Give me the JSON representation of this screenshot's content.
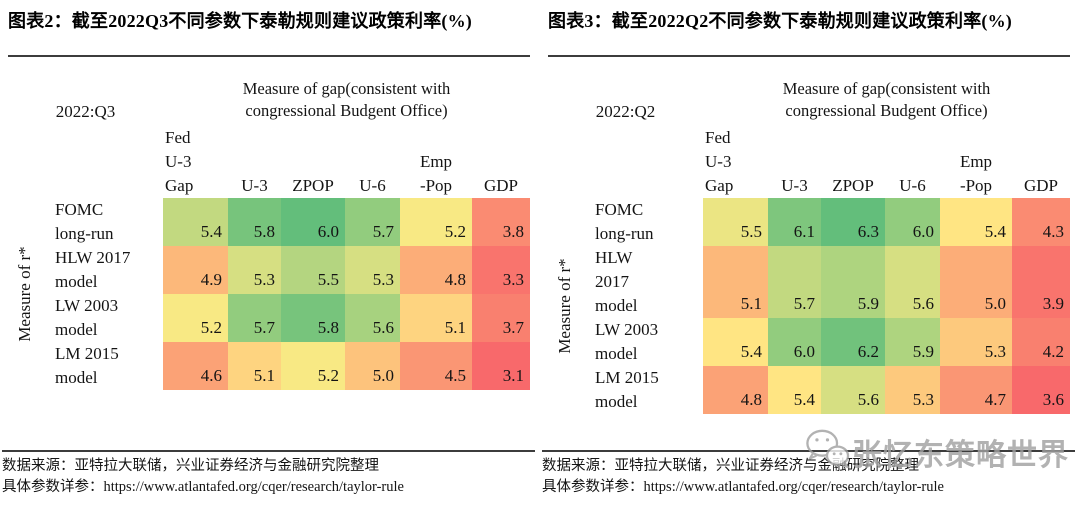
{
  "heatmap_scale": {
    "low": "#F8696B",
    "mid": "#FFEB84",
    "high": "#63BE7B"
  },
  "watermark": {
    "icon": "wechat-icon",
    "text": "张忆东策略世界"
  },
  "chart_data": [
    {
      "type": "heatmap",
      "title": "图表2：截至2022Q3不同参数下泰勒规则建议政策利率(%)",
      "period": "2022:Q3",
      "gap_header": "Measure of gap(consistent with congressional Budgent Office)",
      "ylabel": "Measure of r*",
      "columns": [
        [
          "Fed",
          "U-3",
          "Gap"
        ],
        [
          "U-3"
        ],
        [
          "ZPOP"
        ],
        [
          "U-6"
        ],
        [
          "Emp",
          "-Pop"
        ],
        [
          "GDP"
        ]
      ],
      "rows": [
        [
          "FOMC",
          "long-run"
        ],
        [
          "HLW 2017",
          "model"
        ],
        [
          "LW 2003",
          "model"
        ],
        [
          "LM 2015",
          "model"
        ]
      ],
      "values": [
        [
          5.4,
          5.8,
          6.0,
          5.7,
          5.2,
          3.8
        ],
        [
          4.9,
          5.3,
          5.5,
          5.3,
          4.8,
          3.3
        ],
        [
          5.2,
          5.7,
          5.8,
          5.6,
          5.1,
          3.7
        ],
        [
          4.6,
          5.1,
          5.2,
          5.0,
          4.5,
          3.1
        ]
      ],
      "legend_note": "color scale: red = low rate, yellow = middle, green = high rate",
      "source_note": "数据来源：亚特拉大联储，兴业证券经济与金融研究院整理",
      "params_note": "具体参数详参：https://www.atlantafed.org/cqer/research/taylor-rule"
    },
    {
      "type": "heatmap",
      "title": "图表3：截至2022Q2不同参数下泰勒规则建议政策利率(%)",
      "period": "2022:Q2",
      "gap_header": "Measure of gap(consistent with congressional Budgent Office)",
      "ylabel": "Measure of r*",
      "columns": [
        [
          "Fed",
          "U-3",
          "Gap"
        ],
        [
          "U-3"
        ],
        [
          "ZPOP"
        ],
        [
          "U-6"
        ],
        [
          "Emp",
          "-Pop"
        ],
        [
          "GDP"
        ]
      ],
      "rows": [
        [
          "FOMC",
          "long-run"
        ],
        [
          "HLW",
          "2017",
          "model"
        ],
        [
          "LW 2003",
          "model"
        ],
        [
          "LM 2015",
          "model"
        ]
      ],
      "values": [
        [
          5.5,
          6.1,
          6.3,
          6.0,
          5.4,
          4.3
        ],
        [
          5.1,
          5.7,
          5.9,
          5.6,
          5.0,
          3.9
        ],
        [
          5.4,
          6.0,
          6.2,
          5.9,
          5.3,
          4.2
        ],
        [
          4.8,
          5.4,
          5.6,
          5.3,
          4.7,
          3.6
        ]
      ],
      "legend_note": "color scale: red = low rate, yellow = middle, green = high rate",
      "source_note": "数据来源：亚特拉大联储，兴业证券经济与金融研究院整理",
      "params_note": "具体参数详参：https://www.atlantafed.org/cqer/research/taylor-rule"
    }
  ]
}
